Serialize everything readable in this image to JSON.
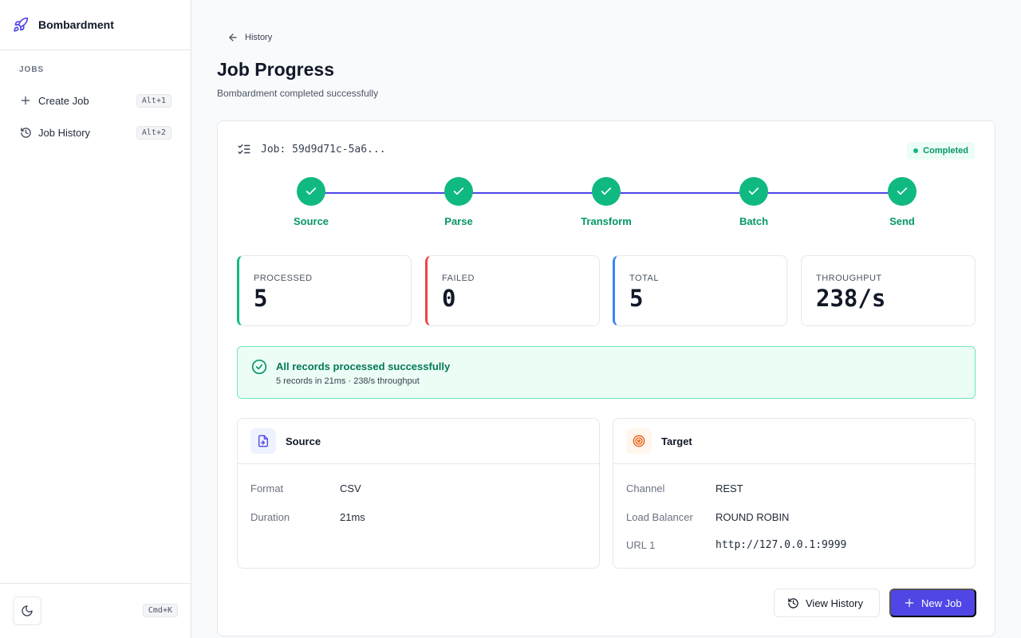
{
  "sidebar": {
    "brand": "Bombardment",
    "section_label": "JOBS",
    "items": [
      {
        "label": "Create Job",
        "shortcut": "Alt+1",
        "icon": "plus-icon"
      },
      {
        "label": "Job History",
        "shortcut": "Alt+2",
        "icon": "history-icon"
      }
    ],
    "footer_shortcut": "Cmd+K"
  },
  "header": {
    "back_label": "History",
    "title": "Job Progress",
    "subtitle": "Bombardment completed successfully"
  },
  "job": {
    "label": "Job: 59d9d71c-5a6...",
    "status": "Completed"
  },
  "steps": [
    {
      "label": "Source",
      "state": "done"
    },
    {
      "label": "Parse",
      "state": "done"
    },
    {
      "label": "Transform",
      "state": "done"
    },
    {
      "label": "Batch",
      "state": "done"
    },
    {
      "label": "Send",
      "state": "done"
    }
  ],
  "stats": [
    {
      "label": "PROCESSED",
      "value": "5",
      "accent": "#10b981"
    },
    {
      "label": "FAILED",
      "value": "0",
      "accent": "#ef4444"
    },
    {
      "label": "TOTAL",
      "value": "5",
      "accent": "#3b82f6"
    },
    {
      "label": "THROUGHPUT",
      "value": "238/s",
      "accent": ""
    }
  ],
  "alert": {
    "title": "All records processed successfully",
    "description": "5 records in 21ms · 238/s throughput"
  },
  "source_panel": {
    "title": "Source",
    "rows": [
      {
        "key": "Format",
        "value": "CSV"
      },
      {
        "key": "Duration",
        "value": "21ms"
      }
    ]
  },
  "target_panel": {
    "title": "Target",
    "rows": [
      {
        "key": "Channel",
        "value": "REST"
      },
      {
        "key": "Load Balancer",
        "value": "ROUND ROBIN"
      },
      {
        "key": "URL 1",
        "value": "http://127.0.0.1:9999"
      }
    ]
  },
  "actions": {
    "view_history": "View History",
    "new_job": "New Job"
  },
  "colors": {
    "accent": "#4f46e5",
    "success": "#10b981",
    "danger": "#ef4444",
    "info": "#3b82f6"
  }
}
